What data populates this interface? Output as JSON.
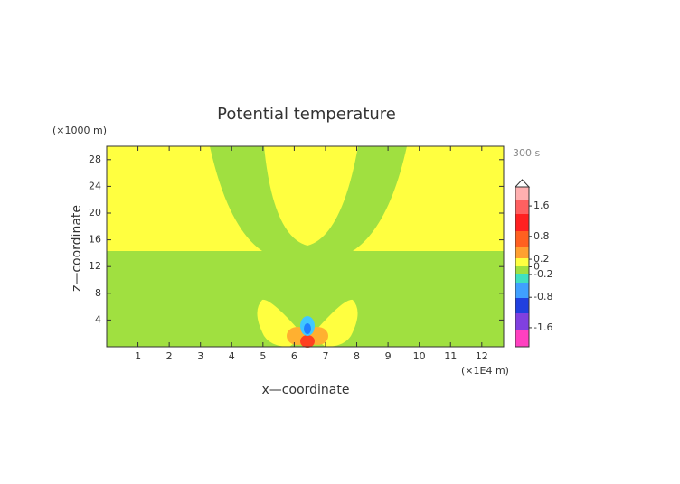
{
  "chart_data": {
    "type": "contour",
    "title": "Potential temperature",
    "x_label": "x—coordinate",
    "y_label": "z—coordinate",
    "x_unit": "(×1E4 m)",
    "y_unit": "(×1000 m)",
    "time_label": "300 s",
    "xlim": [
      0,
      12.7
    ],
    "xticks": [
      1,
      2,
      3,
      4,
      5,
      6,
      7,
      8,
      9,
      10,
      11,
      12
    ],
    "ylim": [
      0,
      30
    ],
    "yticks": [
      4,
      8,
      12,
      16,
      20,
      24,
      28
    ],
    "colorbar": {
      "lim": [
        -2.1,
        2.1
      ],
      "ticks": [
        1.6,
        0.8,
        0.2,
        0,
        -0.2,
        -0.8,
        -1.6
      ]
    }
  }
}
